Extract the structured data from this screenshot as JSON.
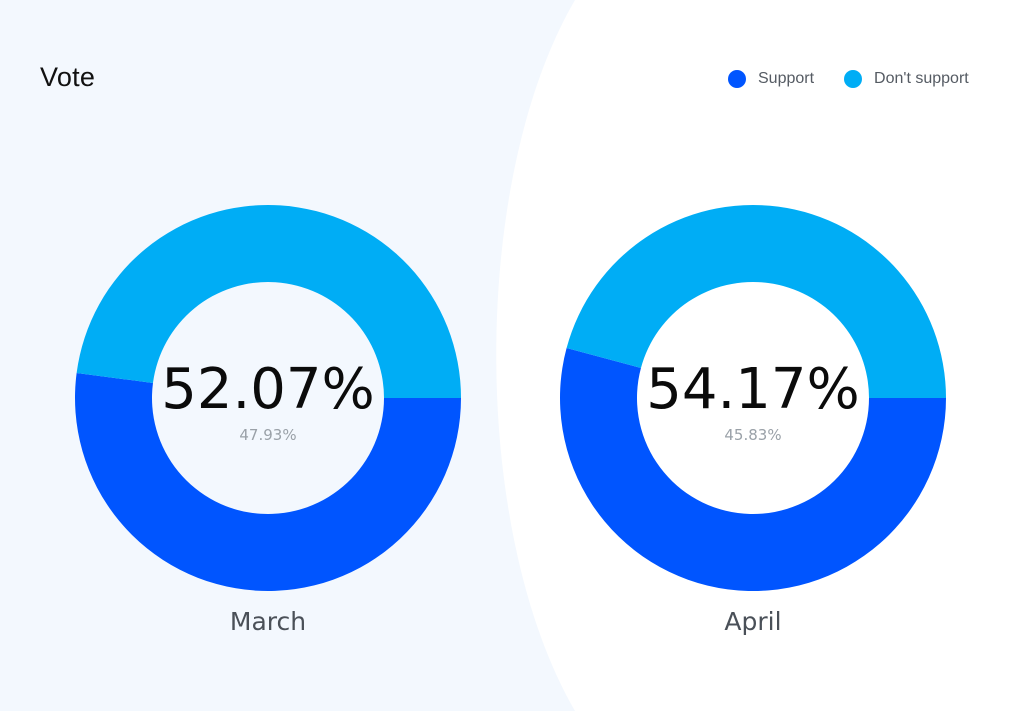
{
  "title": "Vote",
  "colors": {
    "support": "#0055ff",
    "dont_support": "#00adf5",
    "panel_bg": "#f3f8fe"
  },
  "legend": {
    "support": "Support",
    "dont_support": "Don't support"
  },
  "chart_data": [
    {
      "type": "pie",
      "title": "",
      "label": "March",
      "categories": [
        "Support",
        "Don't support"
      ],
      "values": [
        52.07,
        47.93
      ],
      "center_text": "52.07%",
      "sub_text": "47.93%"
    },
    {
      "type": "pie",
      "title": "",
      "label": "April",
      "categories": [
        "Support",
        "Don't support"
      ],
      "values": [
        54.17,
        45.83
      ],
      "center_text": "54.17%",
      "sub_text": "45.83%"
    }
  ]
}
